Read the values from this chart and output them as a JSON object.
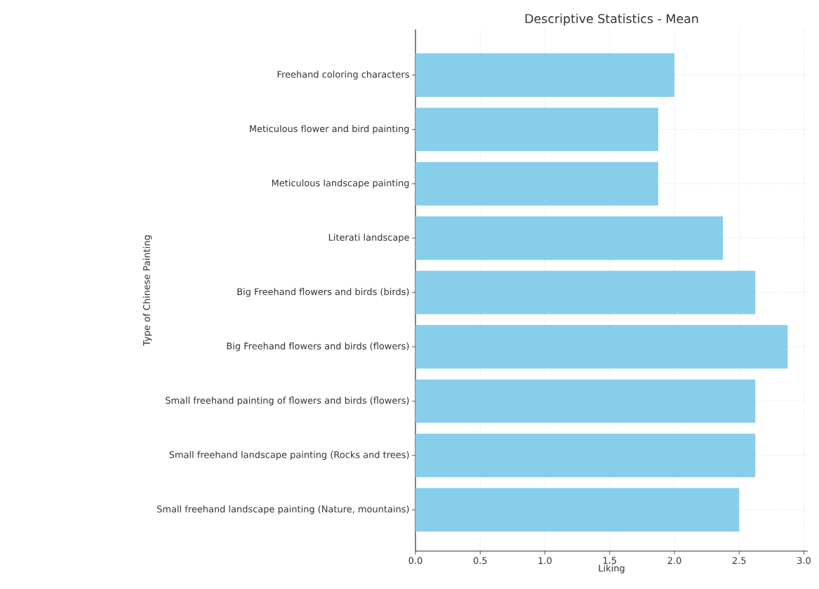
{
  "chart_data": {
    "type": "bar",
    "orientation": "horizontal",
    "title": "Descriptive Statistics - Mean",
    "xlabel": "Liking",
    "ylabel": "Type of Chinese Painting",
    "categories": [
      "Freehand coloring characters",
      "Meticulous flower and bird painting",
      "Meticulous landscape painting",
      "Literati landscape",
      "Big Freehand flowers and birds (birds)",
      "Big Freehand flowers and birds (flowers)",
      "Small freehand painting of flowers and birds (flowers)",
      "Small freehand landscape painting (Rocks and trees)",
      "Small freehand landscape painting (Nature, mountains)"
    ],
    "values": [
      2.0,
      1.875,
      1.875,
      2.375,
      2.625,
      2.875,
      2.625,
      2.625,
      2.5
    ],
    "color": "#87ceeb",
    "xlim": [
      0,
      3.03
    ],
    "xticks": [
      {
        "value": 0,
        "label": "0.0"
      },
      {
        "value": 0.5,
        "label": "0.5"
      },
      {
        "value": 1,
        "label": "1.0"
      },
      {
        "value": 1.5,
        "label": "1.5"
      },
      {
        "value": 2,
        "label": "2.0"
      },
      {
        "value": 2.5,
        "label": "2.5"
      },
      {
        "value": 3,
        "label": "3.0"
      }
    ],
    "grid": true
  }
}
